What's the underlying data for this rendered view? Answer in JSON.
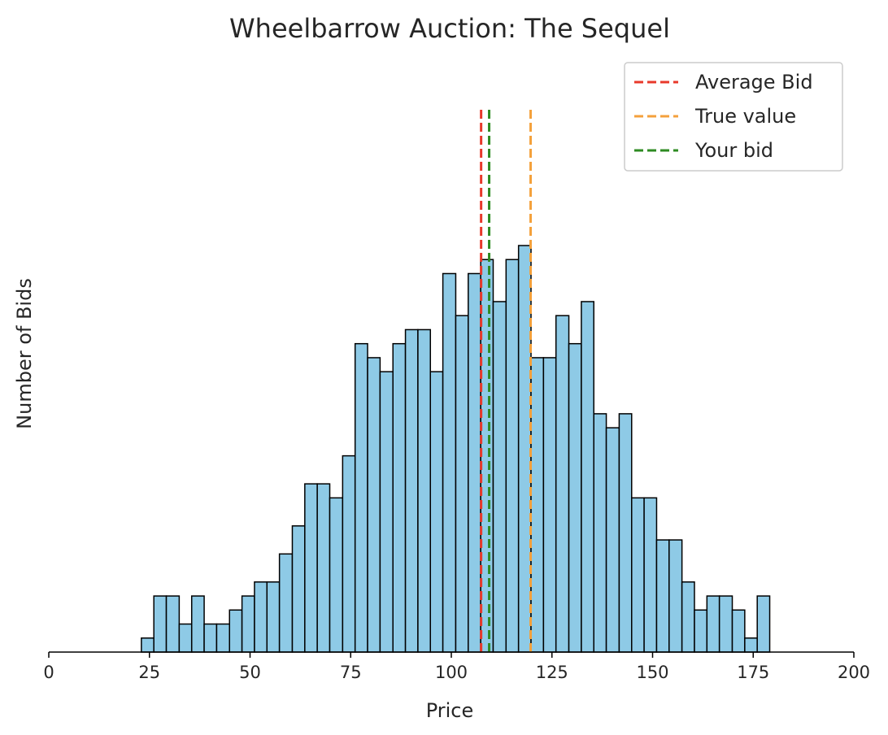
{
  "chart_data": {
    "type": "bar",
    "title": "Wheelbarrow Auction: The Sequel",
    "xlabel": "Price",
    "ylabel": "Number of Bids",
    "xlim": [
      0,
      200
    ],
    "ylim": [
      0,
      27
    ],
    "xticks": [
      "0",
      "25",
      "50",
      "75",
      "100",
      "125",
      "150",
      "175",
      "200"
    ],
    "bar_color": "#8ecae6",
    "bin_edges": [
      23.0,
      26.1,
      29.2,
      32.4,
      35.5,
      38.6,
      41.7,
      44.9,
      48.0,
      51.1,
      54.2,
      57.3,
      60.5,
      63.6,
      66.7,
      69.8,
      73.0,
      76.1,
      79.2,
      82.3,
      85.5,
      88.6,
      91.7,
      94.8,
      97.9,
      101.1,
      104.2,
      107.3,
      110.4,
      113.6,
      116.7,
      119.8,
      122.9,
      126.0,
      129.2,
      132.3,
      135.4,
      138.5,
      141.7,
      144.8,
      147.9,
      151.0,
      154.1,
      157.3,
      160.4,
      163.5,
      166.6,
      169.8,
      172.9,
      176.0,
      179.1
    ],
    "counts": [
      1,
      4,
      4,
      2,
      4,
      2,
      2,
      3,
      4,
      5,
      5,
      7,
      9,
      12,
      12,
      11,
      14,
      22,
      21,
      20,
      22,
      23,
      23,
      20,
      27,
      24,
      27,
      28,
      25,
      28,
      29,
      21,
      21,
      24,
      22,
      25,
      17,
      16,
      17,
      11,
      11,
      8,
      8,
      5,
      3,
      4,
      4,
      3,
      1,
      4
    ],
    "lines": [
      {
        "name": "Average Bid",
        "x": 107.4,
        "color": "#e8392b"
      },
      {
        "name": "True value",
        "x": 119.7,
        "color": "#f4a13c"
      },
      {
        "name": "Your bid",
        "x": 109.4,
        "color": "#2e8b22"
      }
    ],
    "legend_position": "top-right",
    "grid": false
  }
}
